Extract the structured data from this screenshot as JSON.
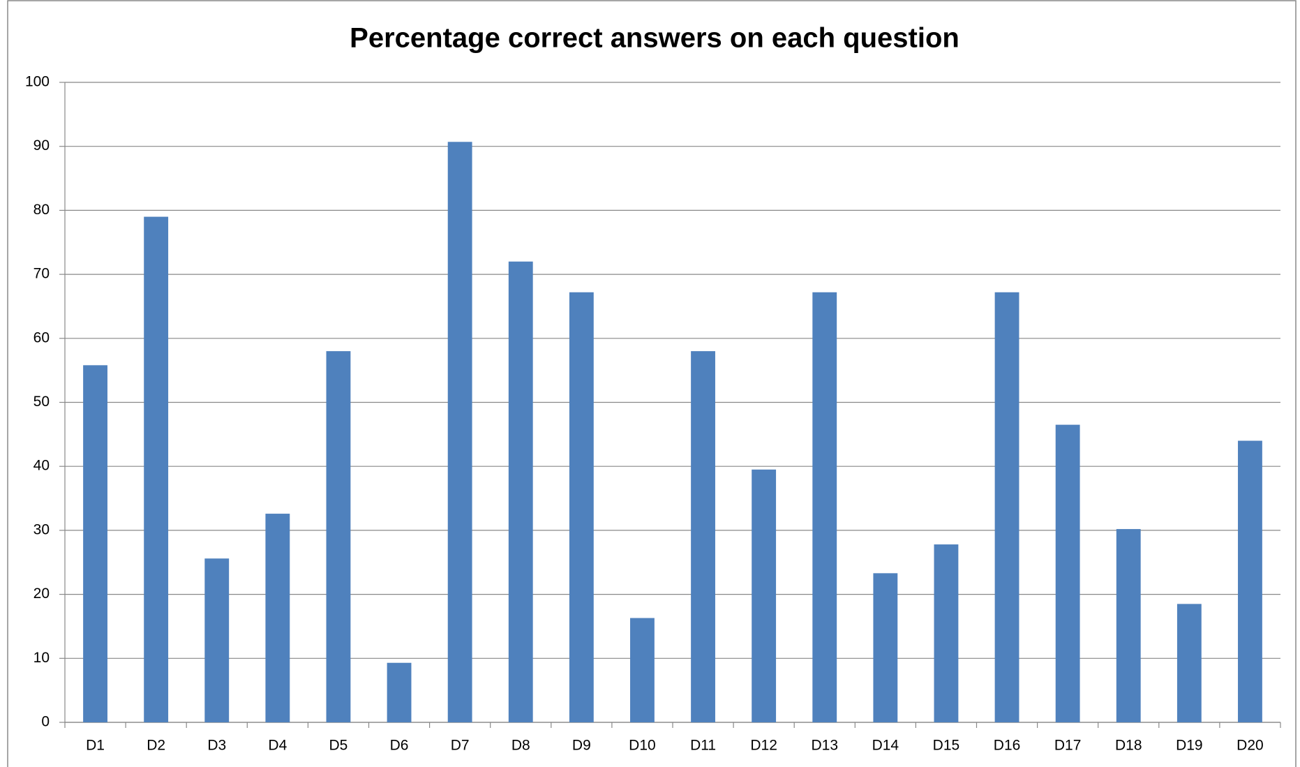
{
  "chart_data": {
    "type": "bar",
    "title": "Percentage correct answers on each question",
    "categories": [
      "D1",
      "D2",
      "D3",
      "D4",
      "D5",
      "D6",
      "D7",
      "D8",
      "D9",
      "D10",
      "D11",
      "D12",
      "D13",
      "D14",
      "D15",
      "D16",
      "D17",
      "D18",
      "D19",
      "D20"
    ],
    "values": [
      55.8,
      79.0,
      25.6,
      32.6,
      58.0,
      9.3,
      90.7,
      72.0,
      67.2,
      16.3,
      58.0,
      39.5,
      67.2,
      23.3,
      27.8,
      67.2,
      46.5,
      30.2,
      18.5,
      44.0
    ],
    "color": "#4f81bd",
    "ylim": [
      0,
      100
    ],
    "yticks": [
      0,
      10,
      20,
      30,
      40,
      50,
      60,
      70,
      80,
      90,
      100
    ],
    "grid": true
  }
}
